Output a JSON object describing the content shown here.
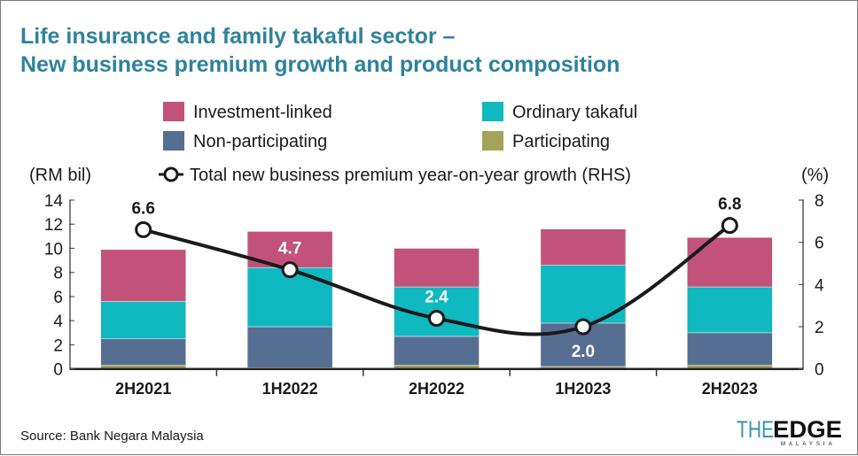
{
  "chart_data": {
    "type": "bar",
    "title": "Life insurance and family takaful sector –",
    "subtitle": "New business premium growth and product composition",
    "ylabel": "(RM bil)",
    "y2label": "(%)",
    "ylim": [
      0,
      14
    ],
    "y2lim": [
      0,
      8
    ],
    "yticks": [
      "0",
      "2",
      "4",
      "6",
      "8",
      "10",
      "12",
      "14"
    ],
    "y2ticks": [
      "0",
      "2",
      "4",
      "6",
      "8"
    ],
    "categories": [
      "2H2021",
      "1H2022",
      "2H2022",
      "1H2023",
      "2H2023"
    ],
    "stacked": true,
    "series": [
      {
        "name": "Participating",
        "color": "#a3a35a",
        "values": [
          0.3,
          0.1,
          0.3,
          0.2,
          0.3
        ]
      },
      {
        "name": "Non-participating",
        "color": "#566e92",
        "values": [
          2.2,
          3.4,
          2.4,
          3.6,
          2.7
        ]
      },
      {
        "name": "Ordinary takaful",
        "color": "#10b8bf",
        "values": [
          3.1,
          4.9,
          4.1,
          4.8,
          3.8
        ]
      },
      {
        "name": "Investment-linked",
        "color": "#c2527a",
        "values": [
          4.3,
          3.0,
          3.2,
          3.0,
          4.1
        ]
      }
    ],
    "line": {
      "name": "Total new business premium year-on-year growth (RHS)",
      "axis": "right",
      "color": "#1a1a1a",
      "values": [
        6.6,
        4.7,
        2.4,
        2.0,
        6.8
      ],
      "labels": [
        "6.6",
        "4.7",
        "2.4",
        "2.0",
        "6.8"
      ]
    },
    "legend_position": "top",
    "grid": false,
    "source": "Source: Bank Negara Malaysia"
  },
  "logo": {
    "text": "THEEDGE",
    "sub": "MALAYSIA"
  }
}
